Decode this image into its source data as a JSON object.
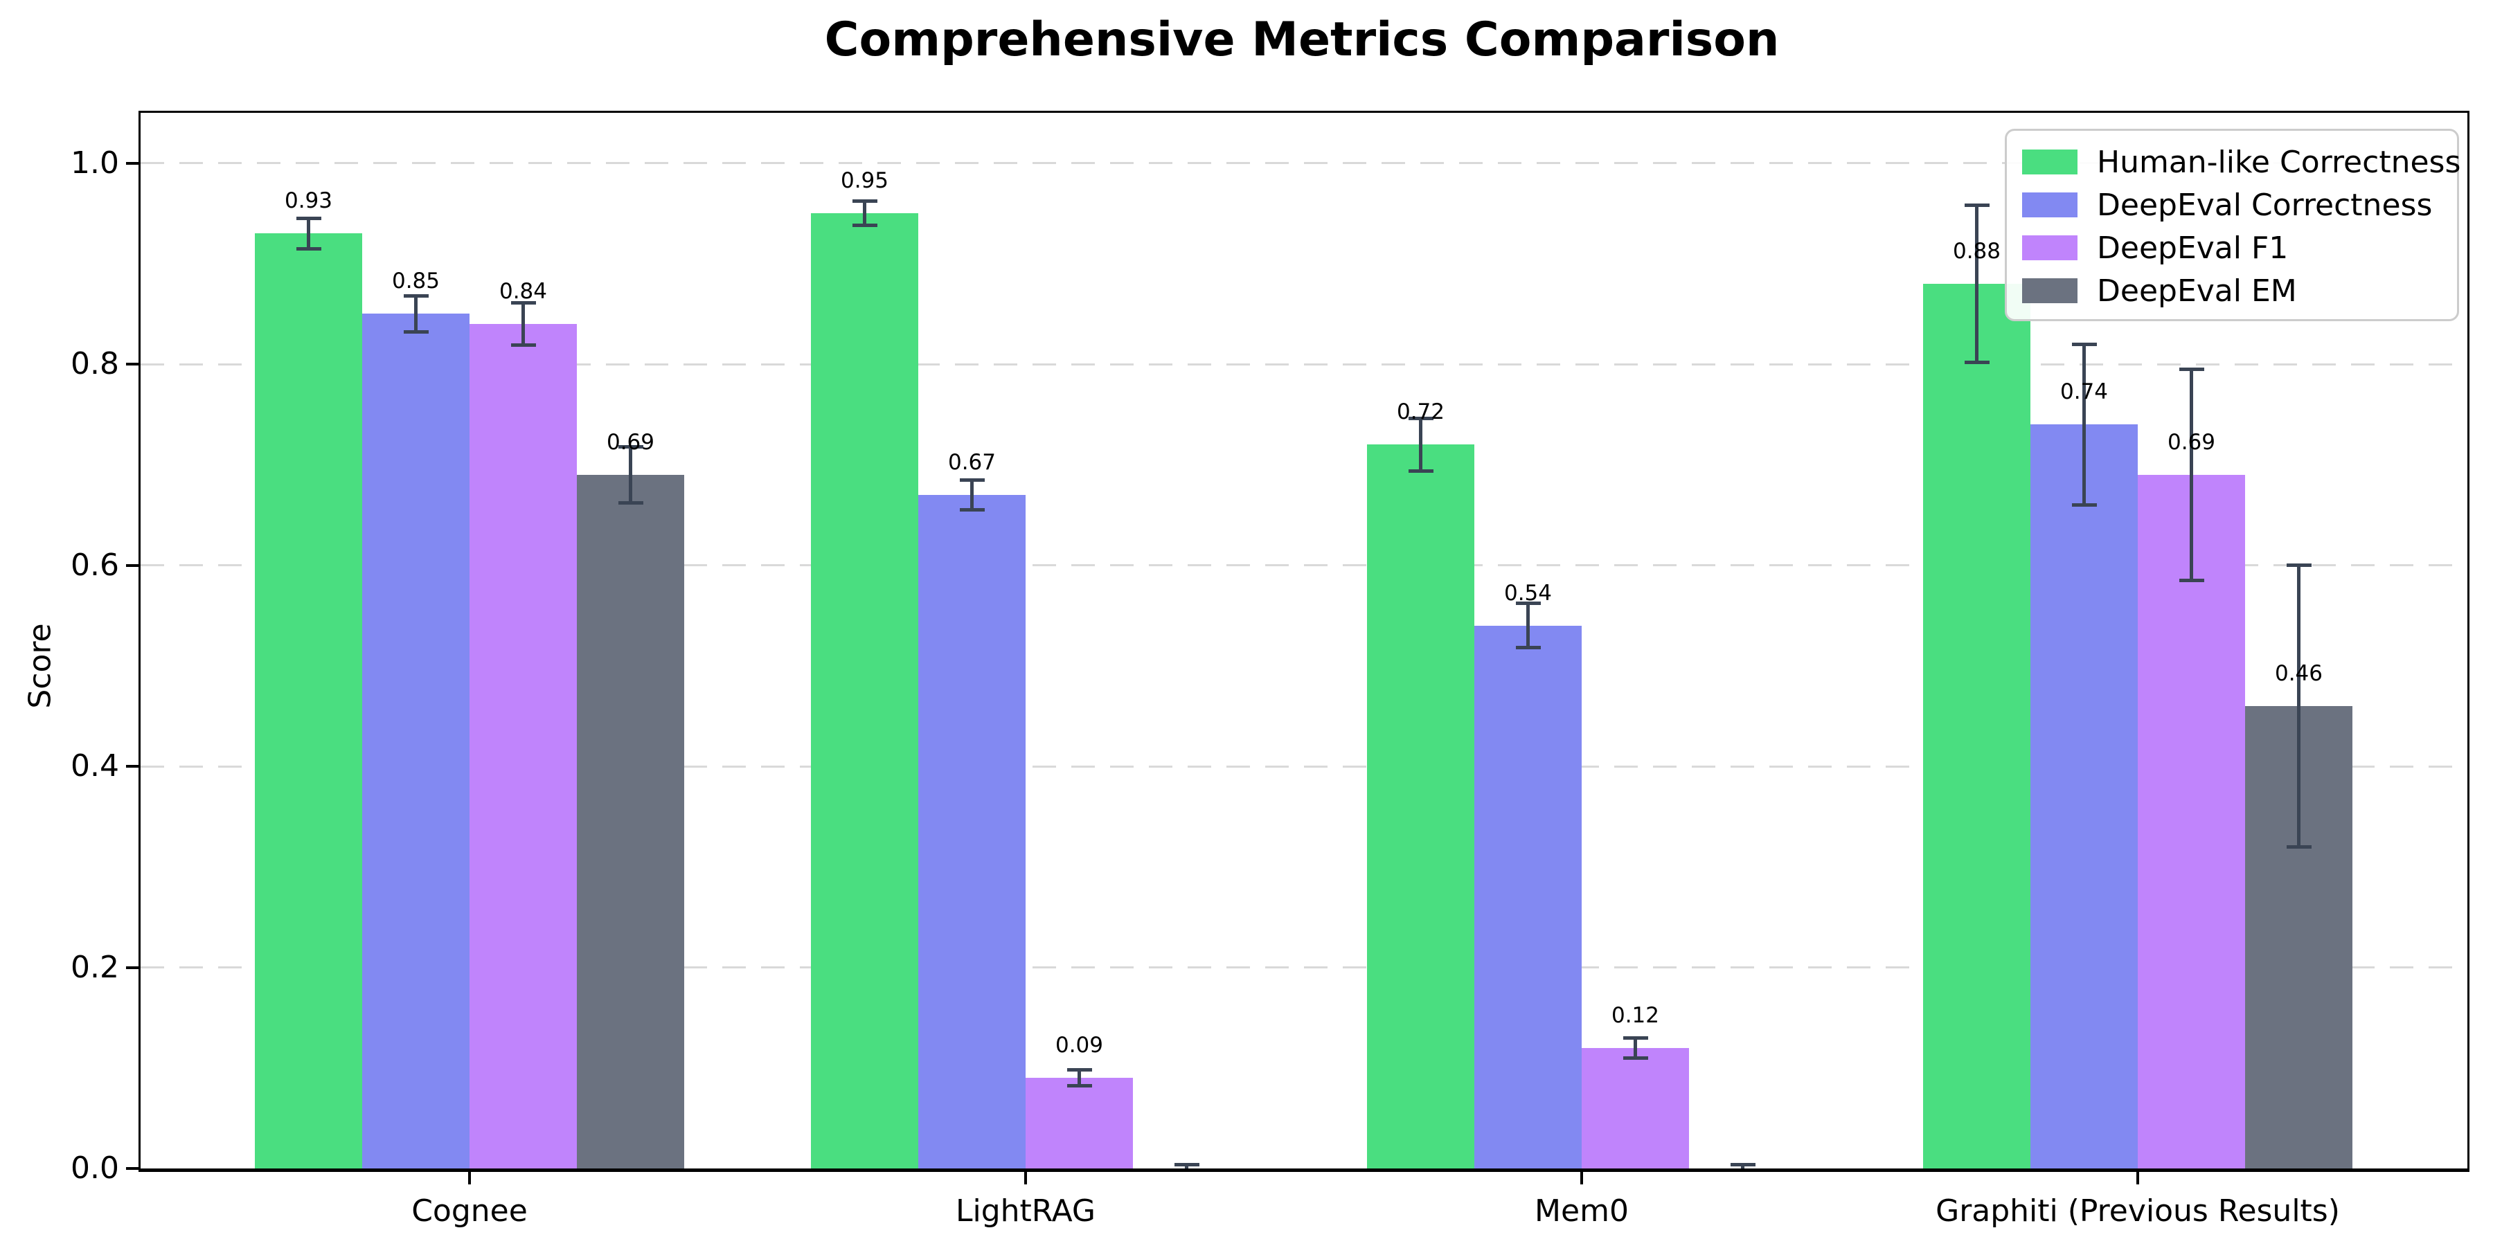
{
  "title": "Comprehensive Metrics Comparison",
  "chart_data": {
    "type": "bar",
    "title": "Comprehensive Metrics Comparison",
    "xlabel": "",
    "ylabel": "Score",
    "categories": [
      "Cognee",
      "LightRAG",
      "Mem0",
      "Graphiti (Previous Results)"
    ],
    "series": [
      {
        "name": "Human-like Correctness",
        "color": "#4ade80",
        "values": [
          0.93,
          0.95,
          0.72,
          0.88
        ],
        "errors": [
          0.015,
          0.012,
          0.026,
          0.078
        ],
        "bar_labels": [
          "0.93",
          "0.95",
          "0.72",
          "0.88"
        ]
      },
      {
        "name": "DeepEval Correctness",
        "color": "#8289f2",
        "values": [
          0.85,
          0.67,
          0.54,
          0.74
        ],
        "errors": [
          0.018,
          0.015,
          0.022,
          0.08
        ],
        "bar_labels": [
          "0.85",
          "0.67",
          "0.54",
          "0.74"
        ]
      },
      {
        "name": "DeepEval F1",
        "color": "#c084fc",
        "values": [
          0.84,
          0.09,
          0.12,
          0.69
        ],
        "errors": [
          0.021,
          0.008,
          0.01,
          0.105
        ],
        "bar_labels": [
          "0.84",
          "0.09",
          "0.12",
          "0.69"
        ]
      },
      {
        "name": "DeepEval EM",
        "color": "#6b7280",
        "values": [
          0.69,
          0.0,
          0.0,
          0.46
        ],
        "errors": [
          0.028,
          0.004,
          0.004,
          0.14
        ],
        "bar_labels": [
          "0.69",
          "",
          "",
          "0.46"
        ]
      }
    ],
    "yticks": [
      "0.0",
      "0.2",
      "0.4",
      "0.6",
      "0.8",
      "1.0"
    ],
    "ylim": [
      0.0,
      1.05
    ],
    "grid": "horizontal-dashed",
    "legend_position": "upper-right",
    "legend_entries": [
      "Human-like Correctness",
      "DeepEval Correctness",
      "DeepEval F1",
      "DeepEval EM"
    ]
  },
  "colors": {
    "error_bar": "#3a4454",
    "gridline": "#d9d9d9",
    "spine": "#000000",
    "legend_border": "#cccccc",
    "background": "#ffffff"
  }
}
